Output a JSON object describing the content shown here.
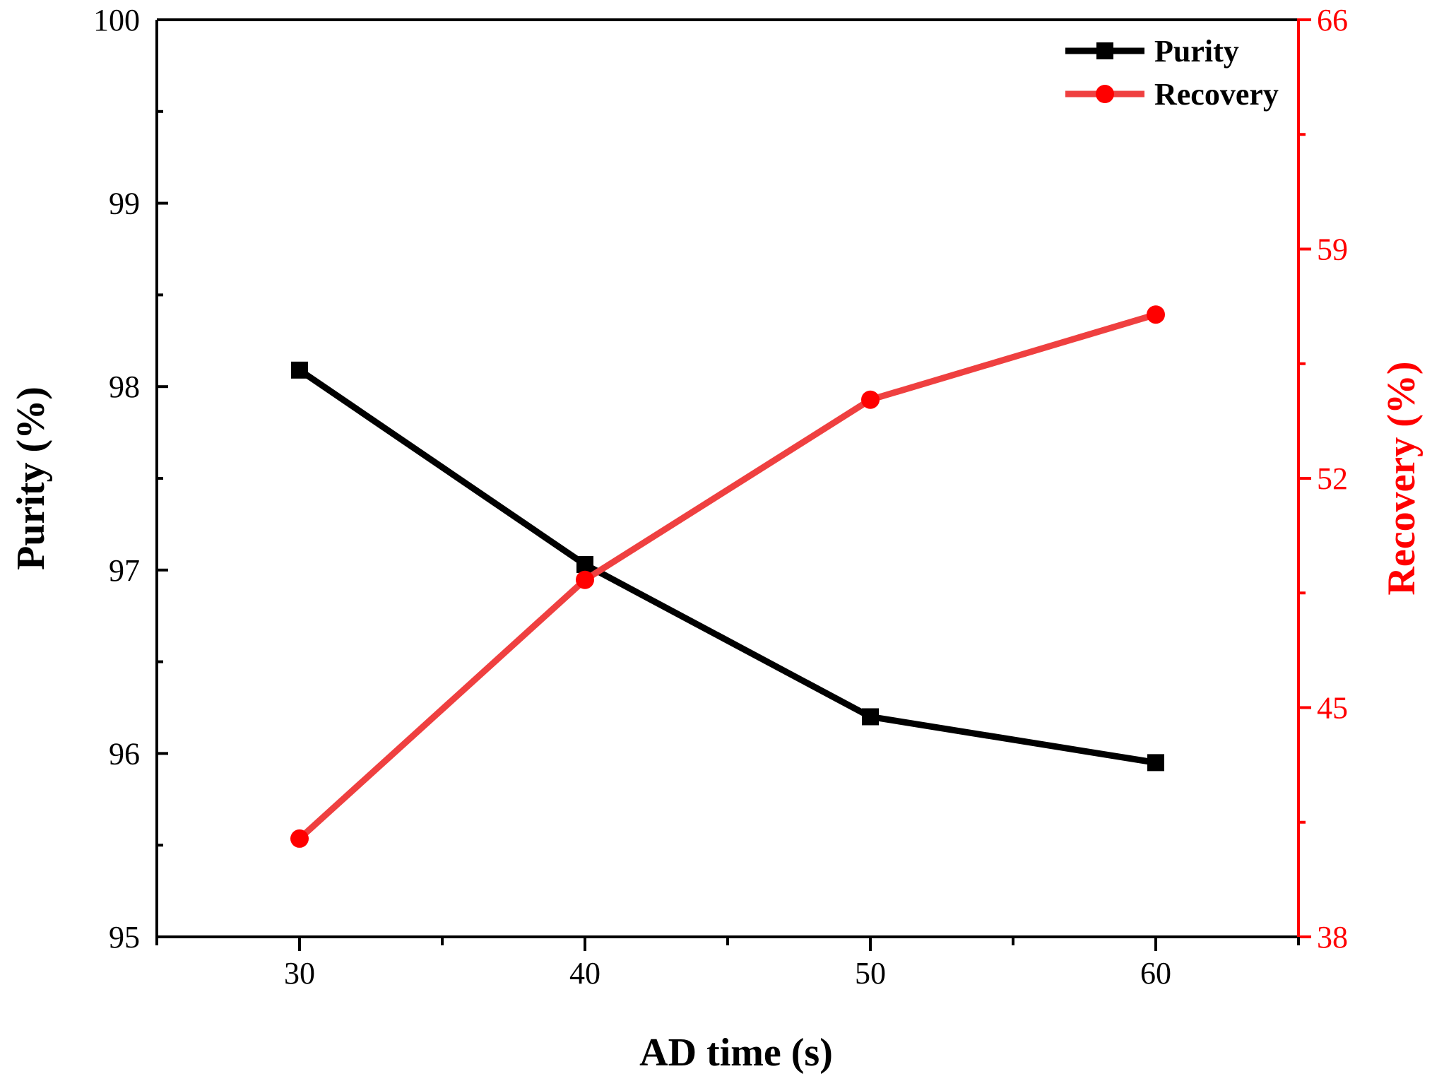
{
  "chart_data": {
    "type": "line",
    "x": [
      30,
      40,
      50,
      60
    ],
    "xlabel": "AD time (s)",
    "xlim": [
      25,
      65
    ],
    "x_ticks": [
      30,
      40,
      50,
      60
    ],
    "y_left": {
      "label": "Purity (%)",
      "lim": [
        95,
        100
      ],
      "ticks": [
        95,
        96,
        97,
        98,
        99,
        100
      ],
      "color": "#000000"
    },
    "y_right": {
      "label": "Recovery (%)",
      "lim": [
        38,
        66
      ],
      "ticks": [
        38,
        45,
        52,
        59,
        66
      ],
      "color": "#ff0000"
    },
    "series": [
      {
        "name": "Purity",
        "axis": "left",
        "marker": "square",
        "color": "#000000",
        "values": [
          98.09,
          97.03,
          96.2,
          95.95
        ]
      },
      {
        "name": "Recovery",
        "axis": "right",
        "marker": "circle",
        "color": "#ef4040",
        "values": [
          41.0,
          48.9,
          54.4,
          57.0
        ]
      }
    ],
    "legend": {
      "position": "top-right"
    },
    "grid": false
  }
}
